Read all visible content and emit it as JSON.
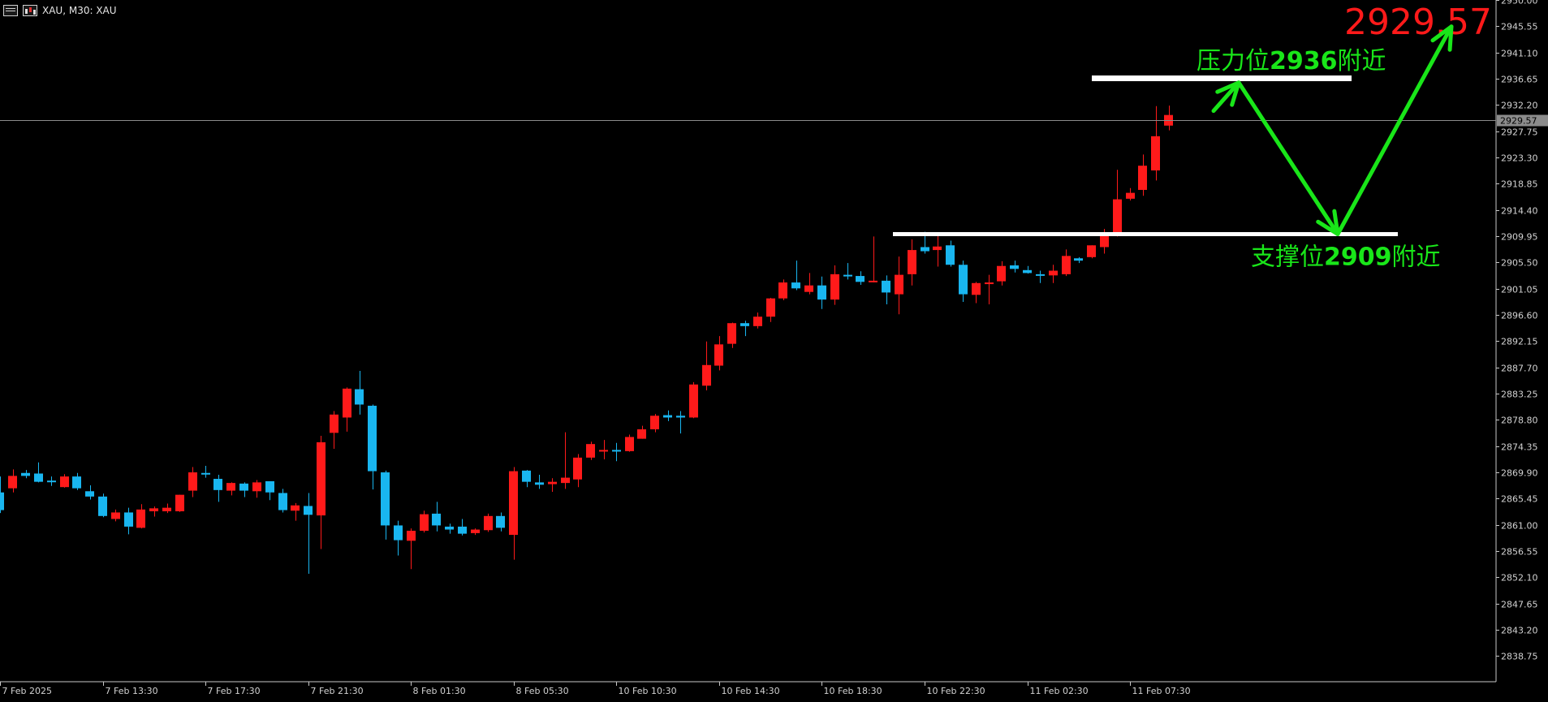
{
  "header": {
    "symbol_label": "XAU, M30:  XAU"
  },
  "colors": {
    "bull": "#ff1a1a",
    "bear": "#19b6f0",
    "grid": "#c8c8c8",
    "arrow": "#19e619",
    "level": "#ffffff",
    "big_price": "#ff1a1a",
    "current_tag_bg": "#8c8c8c"
  },
  "chart_data": {
    "type": "candlestick",
    "symbol": "XAU",
    "timeframe": "M30",
    "ylim": [
      2834.4,
      2950.0
    ],
    "yticks": [
      2950.0,
      2945.55,
      2941.1,
      2936.65,
      2932.2,
      2927.75,
      2923.3,
      2918.85,
      2914.4,
      2909.95,
      2905.5,
      2901.05,
      2896.6,
      2892.15,
      2887.7,
      2883.25,
      2878.8,
      2874.35,
      2869.9,
      2865.45,
      2861.0,
      2856.55,
      2852.1,
      2847.65,
      2843.2,
      2838.75
    ],
    "xtick_labels": [
      "7 Feb 2025",
      "7 Feb 13:30",
      "7 Feb 17:30",
      "7 Feb 21:30",
      "8 Feb 01:30",
      "8 Feb 05:30",
      "10 Feb 10:30",
      "10 Feb 14:30",
      "10 Feb 18:30",
      "10 Feb 22:30",
      "11 Feb 02:30",
      "11 Feb 07:30"
    ],
    "current_price": "2929.57",
    "current_price_value": 2929.57,
    "candles": [
      [
        2866.5,
        2869.2,
        2863.0,
        2863.5
      ],
      [
        2867.2,
        2870.4,
        2866.5,
        2869.3
      ],
      [
        2869.8,
        2870.3,
        2868.9,
        2869.3
      ],
      [
        2869.7,
        2871.6,
        2868.2,
        2868.3
      ],
      [
        2868.5,
        2869.2,
        2867.6,
        2868.4
      ],
      [
        2867.4,
        2869.6,
        2867.3,
        2869.2
      ],
      [
        2869.2,
        2869.8,
        2866.9,
        2867.2
      ],
      [
        2866.7,
        2867.7,
        2865.3,
        2865.8
      ],
      [
        2865.8,
        2866.3,
        2862.3,
        2862.5
      ],
      [
        2862.0,
        2863.6,
        2861.6,
        2863.1
      ],
      [
        2863.1,
        2863.9,
        2859.4,
        2860.7
      ],
      [
        2860.5,
        2864.5,
        2860.4,
        2863.6
      ],
      [
        2863.3,
        2864.1,
        2862.4,
        2863.8
      ],
      [
        2863.3,
        2864.6,
        2863.0,
        2863.9
      ],
      [
        2863.3,
        2866.1,
        2863.2,
        2866.1
      ],
      [
        2866.8,
        2870.8,
        2865.7,
        2869.9
      ],
      [
        2869.8,
        2871.0,
        2869.0,
        2869.6
      ],
      [
        2868.8,
        2869.5,
        2864.9,
        2866.9
      ],
      [
        2866.8,
        2868.2,
        2866.0,
        2868.1
      ],
      [
        2868.0,
        2868.2,
        2865.7,
        2866.8
      ],
      [
        2866.7,
        2868.6,
        2865.6,
        2868.2
      ],
      [
        2868.4,
        2868.4,
        2865.2,
        2866.5
      ],
      [
        2866.4,
        2867.1,
        2863.1,
        2863.5
      ],
      [
        2863.4,
        2864.7,
        2861.7,
        2864.3
      ],
      [
        2864.2,
        2866.4,
        2852.7,
        2862.7
      ],
      [
        2862.6,
        2876.1,
        2856.9,
        2875.0
      ],
      [
        2876.6,
        2880.3,
        2873.9,
        2879.7
      ],
      [
        2879.2,
        2884.3,
        2876.8,
        2884.1
      ],
      [
        2884.0,
        2887.1,
        2879.7,
        2881.4
      ],
      [
        2881.2,
        2881.4,
        2867.0,
        2870.1
      ],
      [
        2869.9,
        2870.2,
        2858.5,
        2860.9
      ],
      [
        2860.9,
        2861.7,
        2855.8,
        2858.4
      ],
      [
        2858.3,
        2860.4,
        2853.5,
        2860.0
      ],
      [
        2860.0,
        2863.4,
        2859.7,
        2862.8
      ],
      [
        2862.9,
        2864.9,
        2859.9,
        2860.9
      ],
      [
        2860.7,
        2861.2,
        2859.5,
        2860.2
      ],
      [
        2860.7,
        2862.0,
        2859.2,
        2859.5
      ],
      [
        2859.6,
        2860.4,
        2859.3,
        2860.2
      ],
      [
        2860.1,
        2862.9,
        2859.8,
        2862.5
      ],
      [
        2862.5,
        2863.1,
        2859.9,
        2860.5
      ],
      [
        2859.3,
        2870.8,
        2855.1,
        2870.1
      ],
      [
        2870.2,
        2870.3,
        2867.4,
        2868.3
      ],
      [
        2868.2,
        2869.5,
        2867.1,
        2867.8
      ],
      [
        2867.9,
        2868.9,
        2866.6,
        2868.3
      ],
      [
        2868.1,
        2876.7,
        2867.1,
        2869.0
      ],
      [
        2868.7,
        2873.0,
        2867.4,
        2872.4
      ],
      [
        2872.4,
        2875.1,
        2872.0,
        2874.7
      ],
      [
        2873.7,
        2875.4,
        2872.1,
        2873.7
      ],
      [
        2873.7,
        2874.9,
        2871.8,
        2873.5
      ],
      [
        2873.5,
        2876.3,
        2873.4,
        2875.9
      ],
      [
        2875.6,
        2877.8,
        2875.6,
        2877.2
      ],
      [
        2877.2,
        2879.8,
        2876.7,
        2879.5
      ],
      [
        2879.6,
        2880.4,
        2878.6,
        2879.2
      ],
      [
        2879.5,
        2880.3,
        2876.5,
        2879.2
      ],
      [
        2879.2,
        2885.2,
        2879.1,
        2884.8
      ],
      [
        2884.6,
        2892.1,
        2883.8,
        2888.1
      ],
      [
        2888.0,
        2893.0,
        2887.2,
        2891.6
      ],
      [
        2891.7,
        2895.3,
        2891.0,
        2895.2
      ],
      [
        2895.2,
        2895.6,
        2893.0,
        2894.7
      ],
      [
        2894.7,
        2897.0,
        2894.3,
        2896.3
      ],
      [
        2896.3,
        2899.5,
        2895.4,
        2899.4
      ],
      [
        2899.4,
        2902.6,
        2899.1,
        2902.1
      ],
      [
        2902.1,
        2905.8,
        2900.8,
        2901.1
      ],
      [
        2900.5,
        2903.7,
        2900.1,
        2901.6
      ],
      [
        2901.6,
        2903.1,
        2897.6,
        2899.2
      ],
      [
        2899.2,
        2905.0,
        2898.3,
        2903.5
      ],
      [
        2903.4,
        2905.4,
        2902.6,
        2903.2
      ],
      [
        2903.2,
        2904.0,
        2901.7,
        2902.2
      ],
      [
        2902.2,
        2909.9,
        2902.1,
        2902.4
      ],
      [
        2902.4,
        2903.3,
        2898.4,
        2900.4
      ],
      [
        2900.1,
        2906.5,
        2896.7,
        2903.4
      ],
      [
        2903.5,
        2909.4,
        2901.6,
        2907.6
      ],
      [
        2908.1,
        2910.7,
        2907.0,
        2907.4
      ],
      [
        2907.6,
        2910.0,
        2904.8,
        2908.2
      ],
      [
        2908.4,
        2909.2,
        2904.8,
        2905.1
      ],
      [
        2905.1,
        2905.8,
        2898.8,
        2900.1
      ],
      [
        2900.0,
        2902.2,
        2898.6,
        2902.0
      ],
      [
        2902.0,
        2903.4,
        2898.4,
        2902.1
      ],
      [
        2902.3,
        2905.7,
        2901.6,
        2904.9
      ],
      [
        2905.0,
        2905.8,
        2903.8,
        2904.4
      ],
      [
        2904.2,
        2904.9,
        2903.6,
        2903.7
      ],
      [
        2903.5,
        2904.1,
        2902.0,
        2903.4
      ],
      [
        2903.3,
        2905.1,
        2902.0,
        2904.1
      ],
      [
        2903.5,
        2907.7,
        2903.2,
        2906.6
      ],
      [
        2906.2,
        2906.4,
        2905.4,
        2905.8
      ],
      [
        2906.4,
        2908.4,
        2906.2,
        2908.4
      ],
      [
        2908.1,
        2911.2,
        2907.0,
        2910.6
      ],
      [
        2910.6,
        2921.2,
        2909.9,
        2916.2
      ],
      [
        2916.3,
        2918.1,
        2916.0,
        2917.3
      ],
      [
        2917.8,
        2923.8,
        2916.8,
        2921.9
      ],
      [
        2921.1,
        2932.0,
        2919.4,
        2926.9
      ],
      [
        2928.7,
        2932.1,
        2927.9,
        2930.5
      ]
    ],
    "levels": [
      {
        "label_prefix": "压力位",
        "label_value": "2936",
        "label_suffix": "附近",
        "price": 2936.65
      },
      {
        "label_prefix": "支撑位",
        "label_value": "2909",
        "label_suffix": "附近",
        "price": 2910.3
      }
    ],
    "projection": [
      [
        2931.2,
        2936.0
      ],
      [
        2910.3,
        2910.5
      ],
      [
        2945.5,
        2945.5
      ]
    ]
  }
}
